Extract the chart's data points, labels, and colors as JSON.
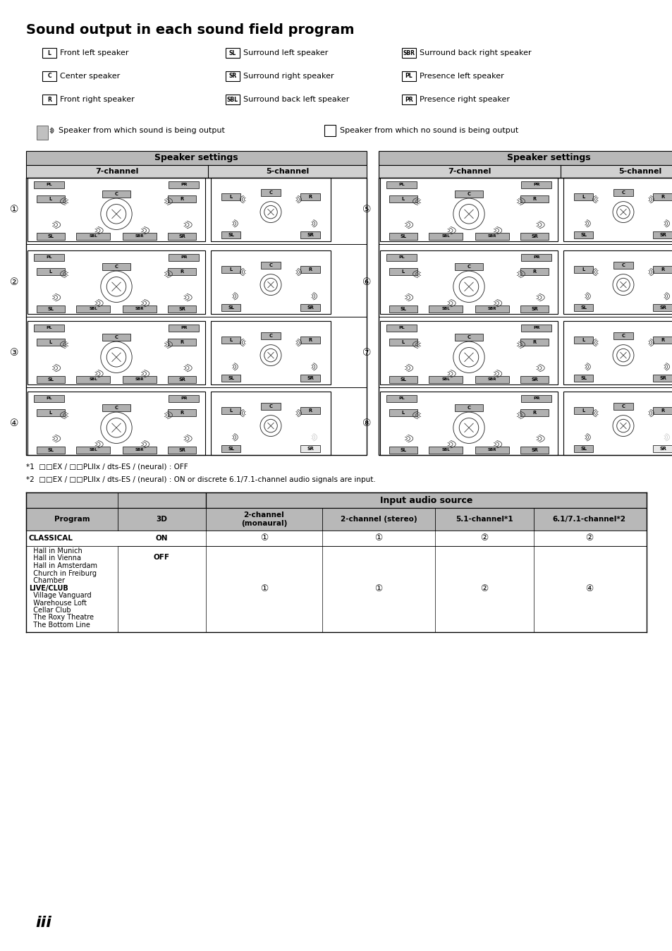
{
  "title": "Sound output in each sound field program",
  "subtitle": "iii",
  "col_data": [
    [
      [
        "L",
        "Front left speaker"
      ],
      [
        "C",
        "Center speaker"
      ],
      [
        "R",
        "Front right speaker"
      ]
    ],
    [
      [
        "SL",
        "Surround left speaker"
      ],
      [
        "SR",
        "Surround right speaker"
      ],
      [
        "SBL",
        "Surround back left speaker"
      ]
    ],
    [
      [
        "SBR",
        "Surround back right speaker"
      ],
      [
        "PL",
        "Presence left speaker"
      ],
      [
        "PR",
        "Presence right speaker"
      ]
    ]
  ],
  "sound_output_text": "Speaker from which sound is being output",
  "no_sound_text": "Speaker from which no sound is being output",
  "note1": "*1  □□EX / □□PLIIx / dts-ES / (neural) : OFF",
  "note2": "*2  □□EX / □□PLIIx / dts-ES / (neural) : ON or discrete 6.1/7.1-channel audio signals are input.",
  "speaker_header": "Speaker settings",
  "ch7_label": "7-channel",
  "ch5_label": "5-channel",
  "program_labels": [
    "①",
    "②",
    "③",
    "④",
    "⑤",
    "⑥",
    "⑦",
    "⑧"
  ],
  "table_header_top": "Input audio source",
  "table_col_labels": [
    "Program",
    "3D",
    "2-channel\n(monaural)",
    "2-channel (stereo)",
    "5.1-channel*1",
    "6.1/7.1-channel*2"
  ],
  "programs_on_row": [
    "CLASSICAL",
    "ON",
    "①",
    "①",
    "②",
    "②"
  ],
  "programs_off_list": [
    "Hall in Munich",
    "Hall in Vienna",
    "Hall in Amsterdam",
    "Church in Freiburg",
    "Chamber",
    "LIVE/CLUB",
    "Village Vanguard",
    "Warehouse Loft",
    "Cellar Club",
    "The Roxy Theatre",
    "The Bottom Line"
  ],
  "programs_off_vals": [
    "OFF",
    "①",
    "①",
    "②",
    "④"
  ],
  "bg_color": "#ffffff",
  "header_bg": "#b8b8b8",
  "subheader_bg": "#d0d0d0",
  "active_bg": "#b0b0b0",
  "inactive_bg": "#e8e8e8"
}
